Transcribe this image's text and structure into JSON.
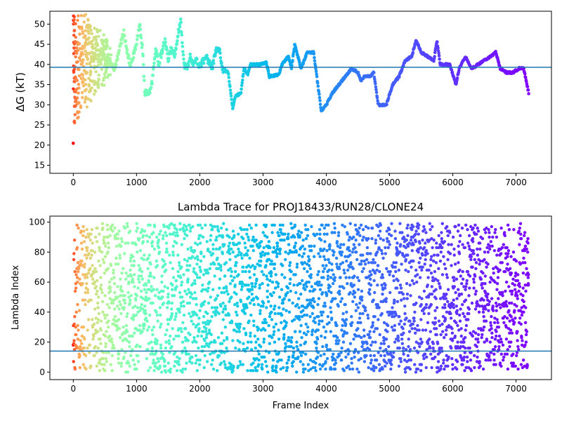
{
  "chart_data": [
    {
      "type": "scatter",
      "title": "",
      "xlabel": "",
      "ylabel": "ΔG (kT)",
      "xlim": [
        -370,
        7560
      ],
      "ylim": [
        13,
        53.2
      ],
      "xticks": [
        0,
        1000,
        2000,
        3000,
        4000,
        5000,
        6000,
        7000
      ],
      "yticks": [
        15,
        20,
        25,
        30,
        35,
        40,
        45,
        50
      ],
      "hline": 39.3,
      "hline_color": "#1f77b4",
      "colormap": "rainbow",
      "x_max": 7200,
      "keyframes": [
        [
          0,
          20
        ],
        [
          10,
          50
        ],
        [
          20,
          24
        ],
        [
          30,
          45
        ],
        [
          40,
          30
        ],
        [
          55,
          41
        ],
        [
          70,
          27
        ],
        [
          85,
          35
        ],
        [
          100,
          48
        ],
        [
          115,
          40
        ],
        [
          130,
          44
        ],
        [
          150,
          38
        ],
        [
          170,
          48
        ],
        [
          190,
          30
        ],
        [
          210,
          42
        ],
        [
          240,
          50
        ],
        [
          270,
          37
        ],
        [
          300,
          45
        ],
        [
          330,
          41
        ],
        [
          360,
          46
        ],
        [
          400,
          43
        ],
        [
          440,
          40
        ],
        [
          480,
          44
        ],
        [
          520,
          38
        ],
        [
          560,
          42
        ],
        [
          600,
          40
        ],
        [
          650,
          39
        ],
        [
          700,
          42
        ],
        [
          750,
          45
        ],
        [
          800,
          48
        ],
        [
          850,
          43
        ],
        [
          900,
          40
        ],
        [
          950,
          42
        ],
        [
          1000,
          45
        ],
        [
          1050,
          50
        ],
        [
          1100,
          43
        ],
        [
          1130,
          33
        ],
        [
          1200,
          32.5
        ],
        [
          1250,
          36
        ],
        [
          1300,
          44
        ],
        [
          1350,
          40
        ],
        [
          1400,
          43
        ],
        [
          1450,
          46
        ],
        [
          1500,
          41
        ],
        [
          1550,
          44
        ],
        [
          1600,
          42
        ],
        [
          1650,
          47
        ],
        [
          1700,
          51
        ],
        [
          1750,
          40
        ],
        [
          1800,
          39
        ],
        [
          1850,
          42
        ],
        [
          1900,
          40
        ],
        [
          1950,
          41
        ],
        [
          2000,
          39.5
        ],
        [
          2100,
          42
        ],
        [
          2200,
          39
        ],
        [
          2250,
          43.5
        ],
        [
          2320,
          43.5
        ],
        [
          2350,
          39
        ],
        [
          2450,
          38
        ],
        [
          2520,
          29
        ],
        [
          2560,
          32
        ],
        [
          2650,
          33
        ],
        [
          2700,
          39
        ],
        [
          2760,
          37.5
        ],
        [
          2800,
          40
        ],
        [
          2950,
          40
        ],
        [
          3050,
          40.5
        ],
        [
          3100,
          37
        ],
        [
          3250,
          37.5
        ],
        [
          3300,
          40
        ],
        [
          3400,
          42
        ],
        [
          3450,
          39
        ],
        [
          3500,
          45
        ],
        [
          3600,
          39
        ],
        [
          3700,
          43
        ],
        [
          3800,
          43
        ],
        [
          3850,
          37
        ],
        [
          3920,
          28.5
        ],
        [
          4000,
          30
        ],
        [
          4100,
          33
        ],
        [
          4200,
          35
        ],
        [
          4300,
          37
        ],
        [
          4400,
          39
        ],
        [
          4500,
          38
        ],
        [
          4550,
          36
        ],
        [
          4600,
          37
        ],
        [
          4700,
          37
        ],
        [
          4750,
          38
        ],
        [
          4820,
          30
        ],
        [
          4950,
          30
        ],
        [
          5050,
          35
        ],
        [
          5150,
          37
        ],
        [
          5250,
          41
        ],
        [
          5350,
          42
        ],
        [
          5420,
          46
        ],
        [
          5500,
          43
        ],
        [
          5600,
          42
        ],
        [
          5700,
          41
        ],
        [
          5750,
          46
        ],
        [
          5800,
          40
        ],
        [
          5950,
          40
        ],
        [
          6050,
          35
        ],
        [
          6100,
          39
        ],
        [
          6200,
          42
        ],
        [
          6300,
          39
        ],
        [
          6400,
          40
        ],
        [
          6500,
          41
        ],
        [
          6600,
          42
        ],
        [
          6680,
          43
        ],
        [
          6750,
          39
        ],
        [
          6850,
          38
        ],
        [
          6950,
          38
        ],
        [
          7050,
          39
        ],
        [
          7120,
          39
        ],
        [
          7200,
          33
        ]
      ]
    },
    {
      "type": "scatter",
      "title": "Lambda Trace for PROJ18433/RUN28/CLONE24",
      "xlabel": "Frame Index",
      "ylabel": "Lambda Index",
      "xlim": [
        -370,
        7560
      ],
      "ylim": [
        -5,
        104
      ],
      "xticks": [
        0,
        1000,
        2000,
        3000,
        4000,
        5000,
        6000,
        7000
      ],
      "yticks": [
        0,
        20,
        40,
        60,
        80,
        100
      ],
      "hline": 14,
      "hline_color": "#1f77b4",
      "colormap": "rainbow",
      "x_max": 7200,
      "y_range": [
        0,
        99
      ]
    }
  ]
}
